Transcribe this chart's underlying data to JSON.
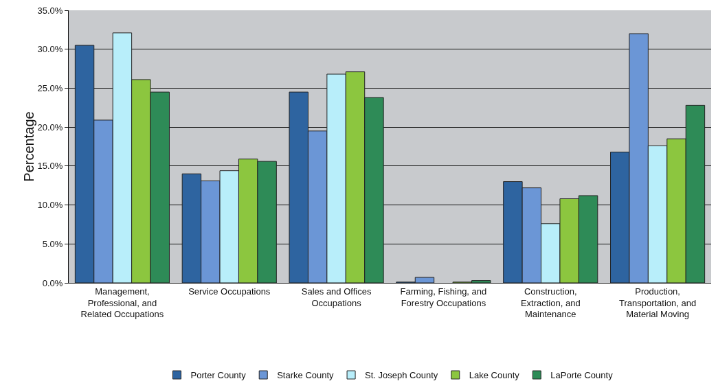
{
  "chart_data": {
    "type": "bar",
    "ylabel": "Percentage",
    "categories": [
      "Management, Professional, and Related Occupations",
      "Service Occupations",
      "Sales and Offices Occupations",
      "Farming, Fishing, and Forestry Occupations",
      "Construction, Extraction, and Maintenance",
      "Production, Transportation, and Material Moving"
    ],
    "series": [
      {
        "name": "Porter County",
        "color": "#2e64a0",
        "values": [
          30.5,
          14.0,
          24.5,
          0.1,
          13.0,
          16.8
        ]
      },
      {
        "name": "Starke County",
        "color": "#6b96d6",
        "values": [
          20.9,
          13.1,
          19.5,
          0.7,
          12.2,
          32.0
        ]
      },
      {
        "name": "St. Joseph County",
        "color": "#b8eefa",
        "values": [
          32.1,
          14.4,
          26.8,
          null,
          7.6,
          17.6
        ]
      },
      {
        "name": "Lake County",
        "color": "#8cc63f",
        "values": [
          26.1,
          15.9,
          27.1,
          0.1,
          10.8,
          18.5
        ]
      },
      {
        "name": "LaPorte County",
        "color": "#2e8b57",
        "values": [
          24.5,
          15.6,
          23.8,
          0.3,
          11.2,
          22.8
        ]
      }
    ],
    "ylim": [
      0,
      35
    ],
    "yticks": [
      {
        "value": 0,
        "label": "0.0%"
      },
      {
        "value": 5,
        "label": "5.0%"
      },
      {
        "value": 10,
        "label": "10.0%"
      },
      {
        "value": 15,
        "label": "15.0%"
      },
      {
        "value": 20,
        "label": "20.0%"
      },
      {
        "value": 25,
        "label": "25.0%"
      },
      {
        "value": 30,
        "label": "30.0%"
      },
      {
        "value": 35,
        "label": "35.0%"
      }
    ],
    "grid": "y",
    "legend": "bottom"
  }
}
